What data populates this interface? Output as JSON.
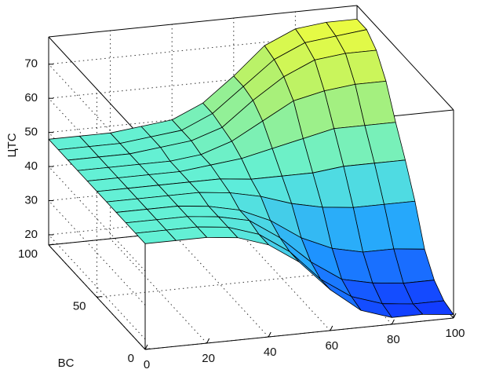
{
  "chart_data": {
    "type": "surface",
    "zlabel": "ЦТС",
    "ylabel": "BC",
    "x": [
      0,
      10,
      20,
      30,
      40,
      50,
      60,
      70,
      80,
      90,
      100
    ],
    "y": [
      0,
      10,
      20,
      30,
      40,
      50,
      60,
      70,
      80,
      90,
      100
    ],
    "z": [
      [
        48,
        48,
        48,
        47,
        44,
        38,
        29,
        22,
        19,
        19,
        18
      ],
      [
        48,
        48,
        48,
        47,
        44,
        38,
        29,
        23,
        20,
        19,
        19
      ],
      [
        48,
        48,
        48,
        47,
        45,
        39,
        31,
        25,
        23,
        22,
        22
      ],
      [
        48,
        48,
        48,
        47,
        45,
        41,
        35,
        31,
        29,
        29,
        28
      ],
      [
        48,
        48,
        48,
        48,
        47,
        45,
        42,
        40,
        39,
        39,
        39
      ],
      [
        48,
        48,
        48,
        48,
        48,
        47,
        47,
        47,
        48,
        48,
        48
      ],
      [
        48,
        48,
        48,
        48,
        49,
        50,
        52,
        54,
        56,
        56,
        56
      ],
      [
        48,
        48,
        48,
        48,
        49,
        52,
        57,
        62,
        64,
        65,
        65
      ],
      [
        48,
        48,
        48,
        49,
        50,
        53,
        60,
        66,
        70,
        71,
        71
      ],
      [
        48,
        48,
        48,
        49,
        50,
        54,
        61,
        68,
        72,
        73,
        74
      ],
      [
        48,
        48,
        48,
        49,
        50,
        54,
        61,
        69,
        73,
        74,
        74
      ]
    ],
    "xlim": [
      0,
      100
    ],
    "ylim": [
      0,
      100
    ],
    "zlim": [
      17,
      78
    ],
    "xticks": [
      0,
      20,
      40,
      60,
      80,
      100
    ],
    "yticks": [
      0,
      50,
      100
    ],
    "zticks": [
      20,
      30,
      40,
      50,
      60,
      70
    ],
    "grid": true,
    "colormap": [
      "#1030ff",
      "#20a0ff",
      "#60f0d8",
      "#b0f070",
      "#ffff30"
    ]
  }
}
